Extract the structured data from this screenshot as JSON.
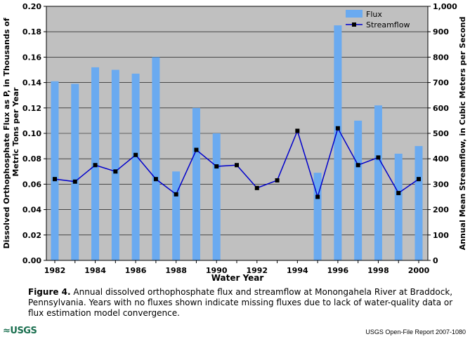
{
  "chart_data": {
    "type": "bar+line",
    "categories": [
      "1982",
      "1983",
      "1984",
      "1985",
      "1986",
      "1987",
      "1988",
      "1989",
      "1990",
      "1991",
      "1992",
      "1993",
      "1994",
      "1995",
      "1996",
      "1997",
      "1998",
      "1999",
      "2000"
    ],
    "x_tick_labels": [
      "1982",
      "1984",
      "1986",
      "1988",
      "1990",
      "1992",
      "1994",
      "1996",
      "1998",
      "2000"
    ],
    "series": [
      {
        "name": "Flux",
        "kind": "bar",
        "axis": "left",
        "color": "#6aaaf0",
        "values": [
          0.141,
          0.139,
          0.152,
          0.15,
          0.147,
          0.16,
          0.07,
          0.12,
          0.1,
          null,
          null,
          null,
          null,
          0.069,
          0.185,
          0.11,
          0.122,
          0.084,
          0.09
        ]
      },
      {
        "name": "Streamflow",
        "kind": "line",
        "axis": "right",
        "color": "#0000cc",
        "values": [
          320,
          310,
          375,
          350,
          415,
          320,
          260,
          435,
          370,
          375,
          285,
          315,
          510,
          250,
          520,
          375,
          405,
          265,
          320
        ]
      }
    ],
    "ylim_left": [
      0,
      0.2
    ],
    "yticks_left": [
      "0.00",
      "0.02",
      "0.04",
      "0.06",
      "0.08",
      "0.10",
      "0.12",
      "0.14",
      "0.16",
      "0.18",
      "0.20"
    ],
    "ylim_right": [
      0,
      1000
    ],
    "yticks_right": [
      "0",
      "100",
      "200",
      "300",
      "400",
      "500",
      "600",
      "700",
      "800",
      "900",
      "1,000"
    ],
    "xlabel": "Water Year",
    "ylabel_left": [
      "Dissolved Orthophosphate Flux as P, in Thousands of",
      "Metric Tons per Year"
    ],
    "ylabel_right": "Annual Mean Streamflow, in Cubic Meters per Second",
    "grid": "horizontal",
    "plot_background": "#c0c0c0",
    "legend_placement": "top-right"
  },
  "caption": {
    "label": "Figure 4.",
    "text": "Annual dissolved orthophosphate flux and streamflow at Monongahela River at Braddock, Pennsylvania. Years with no fluxes shown indicate missing fluxes due to lack of water-quality data or flux estimation model convergence."
  },
  "footer": {
    "logo_text": "≈USGS",
    "report": "USGS Open-File Report 2007-1080"
  }
}
